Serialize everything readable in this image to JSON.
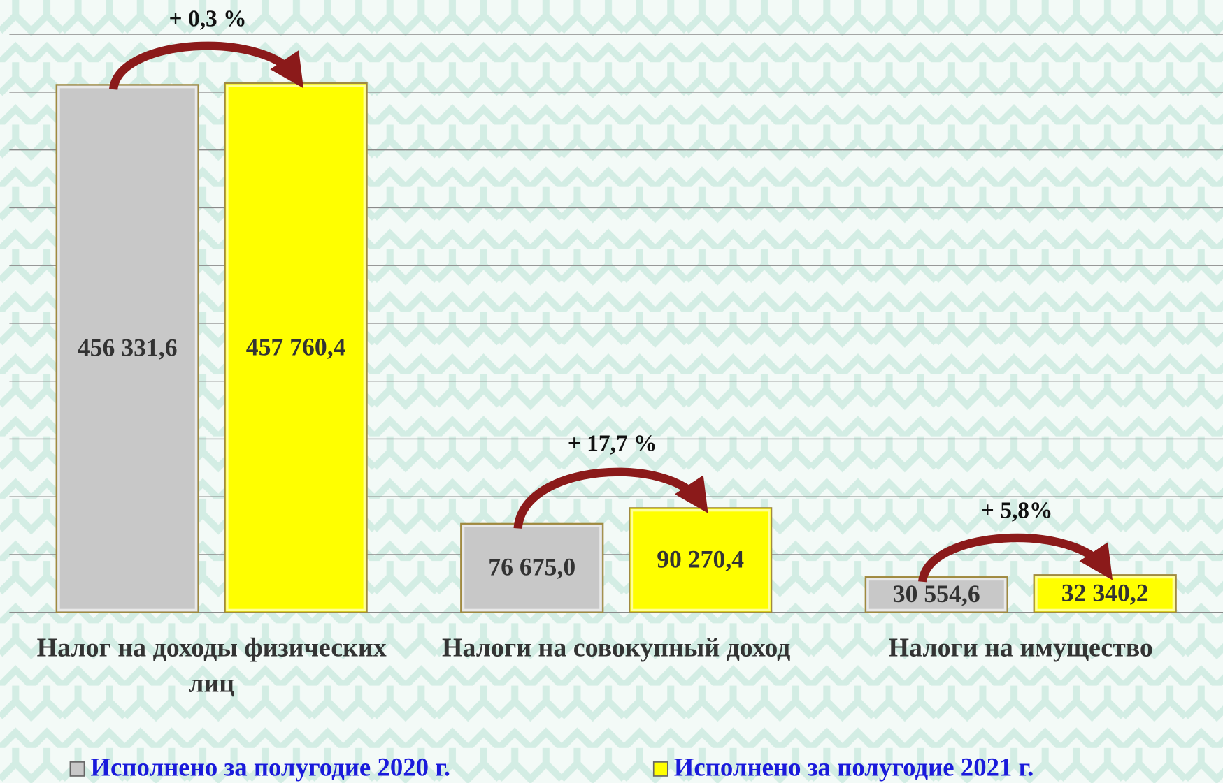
{
  "chart_data": {
    "type": "bar",
    "categories": [
      "Налог на доходы физических лиц",
      "Налоги на совокупный доход",
      "Налоги на имущество"
    ],
    "series": [
      {
        "name": "Исполнено за полугодие 2020 г.",
        "color": "#c8c8c8",
        "values": [
          456331.6,
          76675.0,
          30554.6
        ],
        "value_labels": [
          "456 331,6",
          "76 675,0",
          "30 554,6"
        ]
      },
      {
        "name": "Исполнено за полугодие 2021 г.",
        "color": "#ffff00",
        "values": [
          457760.4,
          90270.4,
          32340.2
        ],
        "value_labels": [
          "457 760,4",
          "90 270,4",
          "32 340,2"
        ]
      }
    ],
    "annotations": [
      "+ 0,3 %",
      "+ 17,7 %",
      "+ 5,8%"
    ],
    "ylim": [
      0,
      500000
    ],
    "yticks": [
      0,
      50000,
      100000,
      150000,
      200000,
      250000,
      300000,
      350000,
      400000,
      450000,
      500000
    ],
    "grid": true,
    "legend": "bottom"
  }
}
